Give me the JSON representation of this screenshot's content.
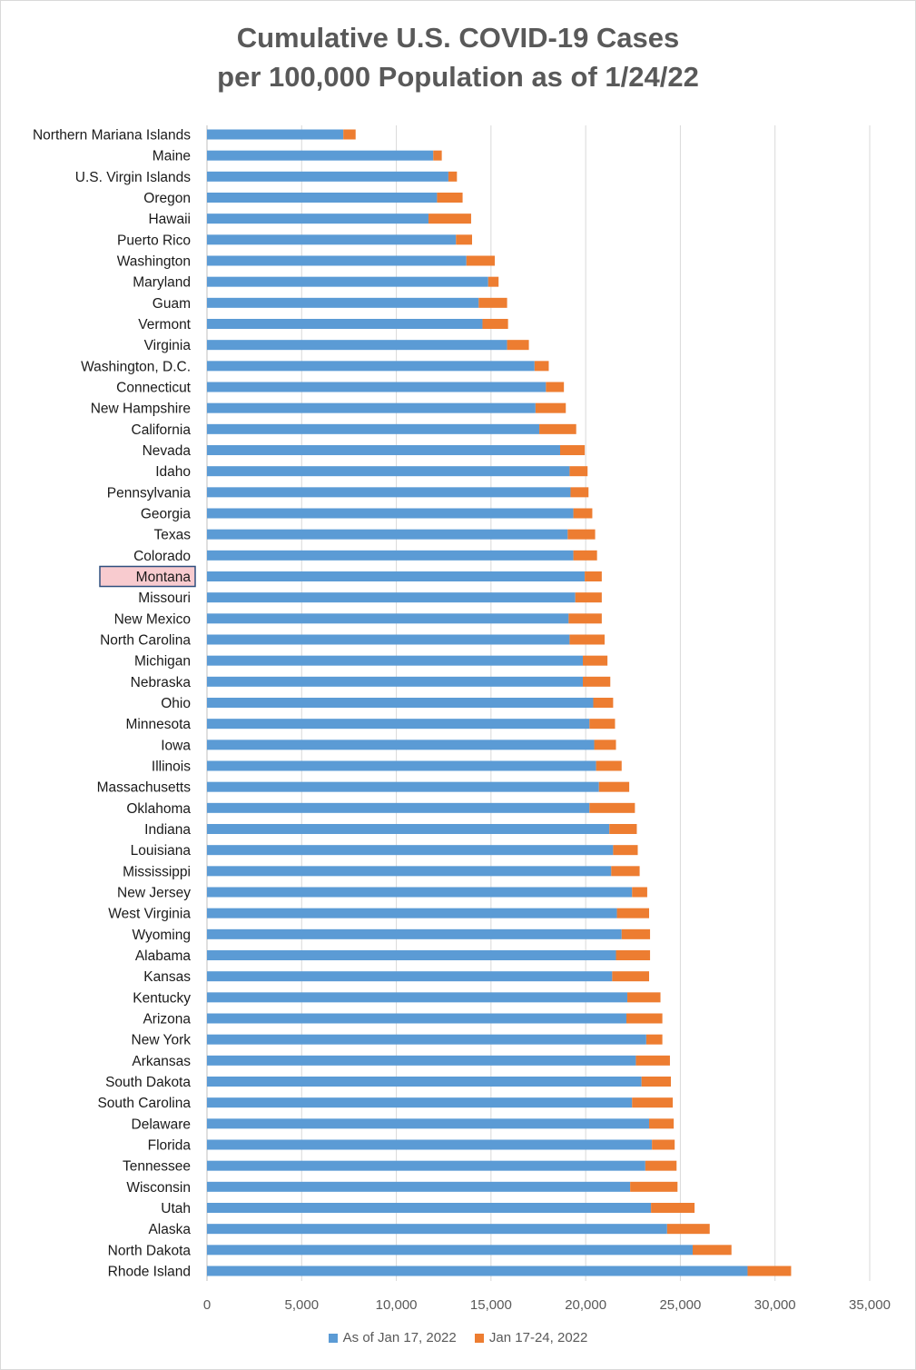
{
  "colors": {
    "series0": "#5b9bd5",
    "series1": "#ed7d31",
    "highlight_fill": "#f8cbcf",
    "highlight_border": "#2f4f7f"
  },
  "chart_data": {
    "type": "bar",
    "orientation": "horizontal",
    "stacked": true,
    "title_line1": "Cumulative U.S. COVID-19 Cases",
    "title_line2": "per 100,000 Population as of 1/24/22",
    "xlim": [
      0,
      35000
    ],
    "xticks": [
      0,
      5000,
      10000,
      15000,
      20000,
      25000,
      30000,
      35000
    ],
    "xtick_labels": [
      "0",
      "5,000",
      "10,000",
      "15,000",
      "20,000",
      "25,000",
      "30,000",
      "35,000"
    ],
    "grid": "vertical",
    "legend_position": "bottom",
    "highlighted_category": "Montana",
    "categories": [
      "Northern Mariana Islands",
      "Maine",
      "U.S. Virgin Islands",
      "Oregon",
      "Hawaii",
      "Puerto Rico",
      "Washington",
      "Maryland",
      "Guam",
      "Vermont",
      "Virginia",
      "Washington, D.C.",
      "Connecticut",
      "New Hampshire",
      "California",
      "Nevada",
      "Idaho",
      "Pennsylvania",
      "Georgia",
      "Texas",
      "Colorado",
      "Montana",
      "Missouri",
      "New Mexico",
      "North Carolina",
      "Michigan",
      "Nebraska",
      "Ohio",
      "Minnesota",
      "Iowa",
      "Illinois",
      "Massachusetts",
      "Oklahoma",
      "Indiana",
      "Louisiana",
      "Mississippi",
      "New Jersey",
      "West Virginia",
      "Wyoming",
      "Alabama",
      "Kansas",
      "Kentucky",
      "Arizona",
      "New York",
      "Arkansas",
      "South Dakota",
      "South Carolina",
      "Delaware",
      "Florida",
      "Tennessee",
      "Wisconsin",
      "Utah",
      "Alaska",
      "North Dakota",
      "Rhode Island"
    ],
    "series": [
      {
        "name": "As of Jan 17, 2022",
        "values": [
          7200,
          11950,
          12750,
          12150,
          11700,
          13150,
          13700,
          14850,
          14350,
          14550,
          15850,
          17300,
          17900,
          17350,
          17550,
          18650,
          19150,
          19200,
          19350,
          19050,
          19350,
          19950,
          19450,
          19100,
          19150,
          19850,
          19850,
          20400,
          20200,
          20450,
          20550,
          20700,
          20200,
          21250,
          21450,
          21350,
          22450,
          21650,
          21900,
          21600,
          21400,
          22200,
          22150,
          23200,
          22650,
          22950,
          22450,
          23350,
          23500,
          23150,
          22350,
          23450,
          24300,
          25650,
          28550
        ]
      },
      {
        "name": "Jan 17-24, 2022",
        "values": [
          650,
          450,
          450,
          1350,
          2250,
          850,
          1500,
          550,
          1500,
          1350,
          1150,
          750,
          950,
          1600,
          1950,
          1300,
          950,
          950,
          1000,
          1450,
          1250,
          900,
          1400,
          1750,
          1850,
          1300,
          1450,
          1050,
          1350,
          1150,
          1350,
          1600,
          2400,
          1450,
          1300,
          1500,
          800,
          1700,
          1500,
          1800,
          1950,
          1750,
          1900,
          850,
          1800,
          1550,
          2150,
          1300,
          1200,
          1650,
          2500,
          2300,
          2250,
          2050,
          2300
        ]
      }
    ]
  }
}
